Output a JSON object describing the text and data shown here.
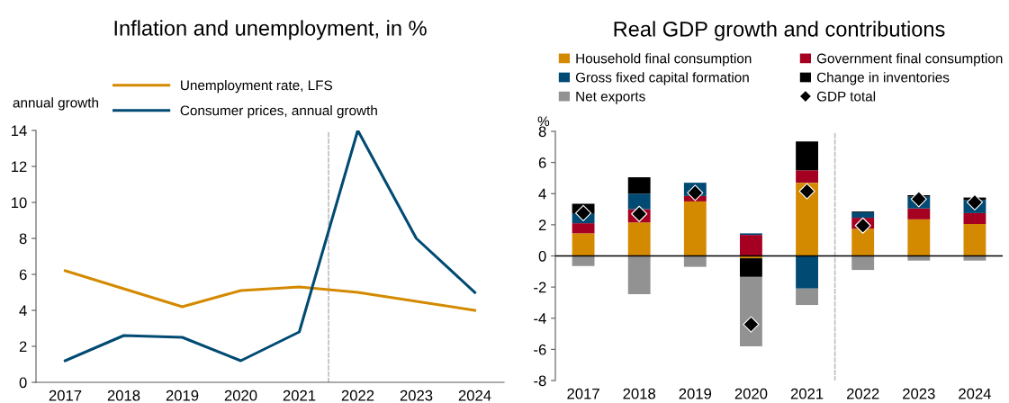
{
  "chart_data": [
    {
      "type": "line",
      "title": "Inflation and unemployment, in %",
      "ylabel": "annual growth",
      "categories": [
        "2017",
        "2018",
        "2019",
        "2020",
        "2021",
        "2022",
        "2023",
        "2024"
      ],
      "series": [
        {
          "name": "Unemployment rate, LFS",
          "color": "#d48a00",
          "values": [
            6.2,
            5.2,
            4.2,
            5.1,
            5.3,
            5.0,
            4.5,
            4.0
          ]
        },
        {
          "name": "Consumer prices, annual growth",
          "color": "#004a73",
          "values": [
            1.2,
            2.6,
            2.5,
            1.2,
            2.8,
            14.0,
            8.0,
            5.0
          ]
        }
      ],
      "ylim": [
        0,
        14
      ],
      "yticks": [
        0,
        2,
        4,
        6,
        8,
        10,
        12,
        14
      ],
      "legend": "top",
      "grid": false,
      "marker": "none",
      "line_style": "solid"
    },
    {
      "type": "bar",
      "title": "Real GDP growth and contributions",
      "ylabel": "%",
      "stacked": true,
      "categories": [
        "2017",
        "2018",
        "2019",
        "2020",
        "2021",
        "2022",
        "2023",
        "2024"
      ],
      "series": [
        {
          "name": "Household final consumption",
          "color": "#d48a00",
          "values": [
            1.45,
            2.15,
            3.5,
            -0.15,
            4.7,
            1.75,
            2.35,
            2.05
          ]
        },
        {
          "name": "Government final consumption",
          "color": "#a50021",
          "values": [
            0.65,
            0.85,
            0.35,
            1.35,
            0.8,
            0.7,
            0.7,
            0.7
          ]
        },
        {
          "name": "Gross fixed capital formation",
          "color": "#004a73",
          "values": [
            0.6,
            1.0,
            0.85,
            0.1,
            -2.1,
            0.35,
            0.75,
            0.85
          ]
        },
        {
          "name": "Change in inventories",
          "color": "#000000",
          "values": [
            0.65,
            1.05,
            0.0,
            -1.2,
            1.85,
            0.05,
            0.1,
            0.15
          ]
        },
        {
          "name": "Net exports",
          "color": "#929292",
          "values": [
            -0.65,
            -2.45,
            -0.7,
            -4.45,
            -1.05,
            -0.9,
            -0.3,
            -0.3
          ]
        },
        {
          "name": "GDP total",
          "type": "scatter",
          "marker": "diamond",
          "color": "#000000",
          "values": [
            2.75,
            2.7,
            4.05,
            -4.4,
            4.15,
            1.95,
            3.65,
            3.45
          ]
        }
      ],
      "ylim": [
        -8,
        8
      ],
      "yticks": [
        -8,
        -6,
        -4,
        -2,
        0,
        2,
        4,
        6,
        8
      ],
      "legend": "top",
      "grid": false,
      "ref_lines": [
        {
          "axis": "y",
          "value": 0,
          "color": "#000000",
          "line_style": "solid"
        }
      ]
    }
  ]
}
